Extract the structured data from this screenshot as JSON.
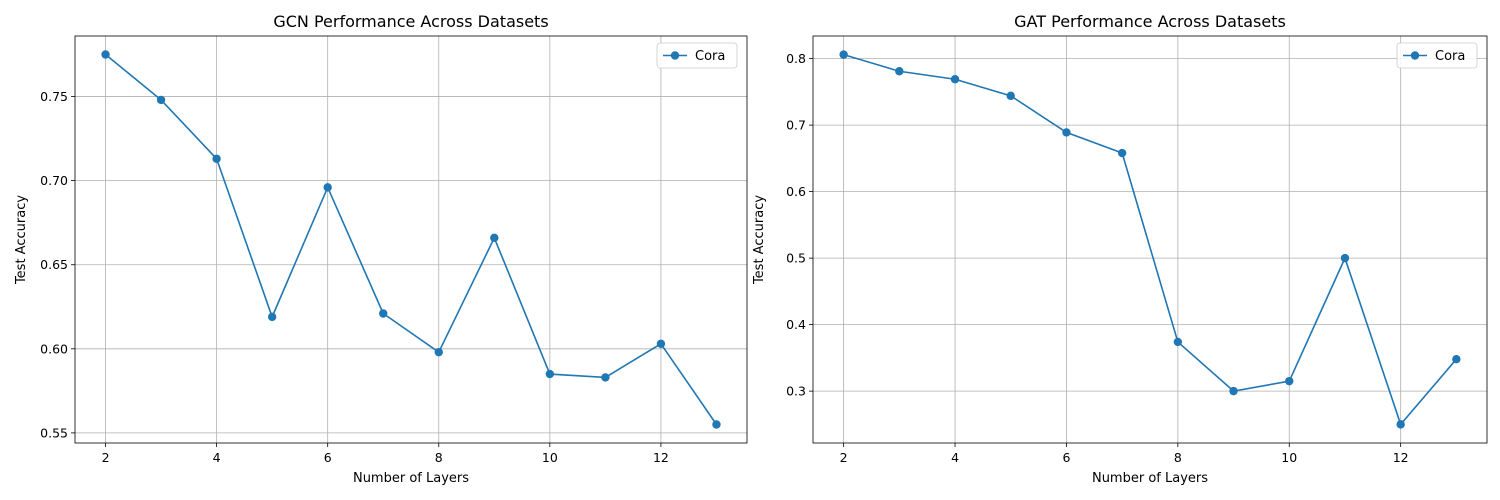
{
  "chart_data": [
    {
      "type": "line",
      "title": "GCN Performance Across Datasets",
      "xlabel": "Number of Layers",
      "ylabel": "Test Accuracy",
      "xlim": [
        1.45,
        13.55
      ],
      "ylim": [
        0.544,
        0.786
      ],
      "xticks": [
        2,
        4,
        6,
        8,
        10,
        12
      ],
      "yticks": [
        0.55,
        0.6,
        0.65,
        0.7,
        0.75
      ],
      "ytick_labels": [
        "0.55",
        "0.60",
        "0.65",
        "0.70",
        "0.75"
      ],
      "grid": true,
      "legend_position": "top-right",
      "series": [
        {
          "name": "Cora",
          "color": "#1f77b4",
          "x": [
            2,
            3,
            4,
            5,
            6,
            7,
            8,
            9,
            10,
            11,
            12,
            13
          ],
          "y": [
            0.775,
            0.748,
            0.713,
            0.619,
            0.696,
            0.621,
            0.598,
            0.666,
            0.585,
            0.583,
            0.603,
            0.555
          ]
        }
      ]
    },
    {
      "type": "line",
      "title": "GAT Performance Across Datasets",
      "xlabel": "Number of Layers",
      "ylabel": "Test Accuracy",
      "xlim": [
        1.45,
        13.55
      ],
      "ylim": [
        0.222,
        0.834
      ],
      "xticks": [
        2,
        4,
        6,
        8,
        10,
        12
      ],
      "yticks": [
        0.3,
        0.4,
        0.5,
        0.6,
        0.7,
        0.8
      ],
      "ytick_labels": [
        "0.3",
        "0.4",
        "0.5",
        "0.6",
        "0.7",
        "0.8"
      ],
      "grid": true,
      "legend_position": "top-right",
      "series": [
        {
          "name": "Cora",
          "color": "#1f77b4",
          "x": [
            2,
            3,
            4,
            5,
            6,
            7,
            8,
            9,
            10,
            11,
            12,
            13
          ],
          "y": [
            0.806,
            0.781,
            0.769,
            0.744,
            0.689,
            0.658,
            0.374,
            0.3,
            0.315,
            0.5,
            0.25,
            0.348
          ]
        }
      ]
    }
  ]
}
